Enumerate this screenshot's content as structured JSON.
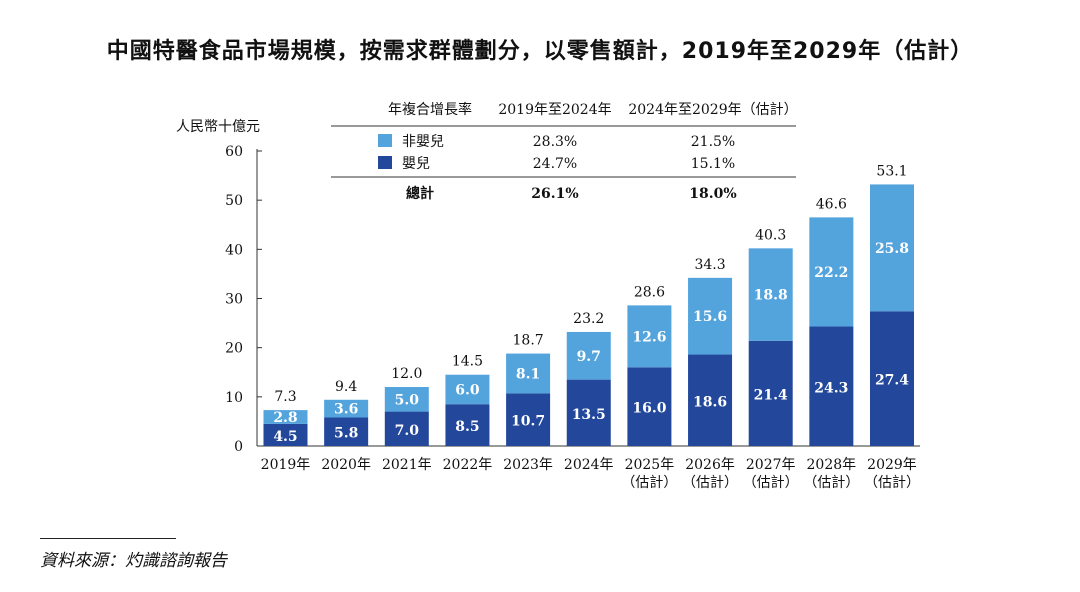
{
  "colors": {
    "non_infant": "#53a3dc",
    "infant": "#22479b",
    "axis": "#333333",
    "text": "#111111",
    "inner_label": "#ffffff"
  },
  "title_text": "中國特醫食品市場規模，按需求群體劃分，以零售額計，2019年至2029年（估計）",
  "source_text": "資料來源：灼識諮詢報告",
  "chart_data": {
    "type": "bar",
    "stacked": true,
    "title": "中國特醫食品市場規模，按需求群體劃分，以零售額計，2019年至2029年（估計）",
    "ylabel": "人民幣十億元",
    "ylim": [
      0,
      60
    ],
    "yticks": [
      0,
      10,
      20,
      30,
      40,
      50,
      60
    ],
    "categories": [
      "2019年",
      "2020年",
      "2021年",
      "2022年",
      "2023年",
      "2024年",
      "2025年",
      "2026年",
      "2027年",
      "2028年",
      "2029年"
    ],
    "category_notes": [
      "",
      "",
      "",
      "",
      "",
      "",
      "（估計）",
      "（估計）",
      "（估計）",
      "（估計）",
      "（估計）"
    ],
    "series": [
      {
        "name": "嬰兒",
        "values": [
          4.5,
          5.8,
          7.0,
          8.5,
          10.7,
          13.5,
          16.0,
          18.6,
          21.4,
          24.3,
          27.4
        ]
      },
      {
        "name": "非嬰兒",
        "values": [
          2.8,
          3.6,
          5.0,
          6.0,
          8.1,
          9.7,
          12.6,
          15.6,
          18.8,
          22.2,
          25.8
        ]
      }
    ],
    "totals": [
      7.3,
      9.4,
      12.0,
      14.5,
      18.7,
      23.2,
      28.6,
      34.3,
      40.3,
      46.6,
      53.1
    ],
    "grid": false,
    "legend_position": "top-left",
    "cagr_table": {
      "header": [
        "年複合增長率",
        "2019年至2024年",
        "2024年至2029年（估計）"
      ],
      "rows": [
        {
          "label": "非嬰兒",
          "values": [
            "28.3%",
            "21.5%"
          ]
        },
        {
          "label": "嬰兒",
          "values": [
            "24.7%",
            "15.1%"
          ]
        }
      ],
      "total": {
        "label": "總計",
        "values": [
          "26.1%",
          "18.0%"
        ]
      }
    }
  }
}
